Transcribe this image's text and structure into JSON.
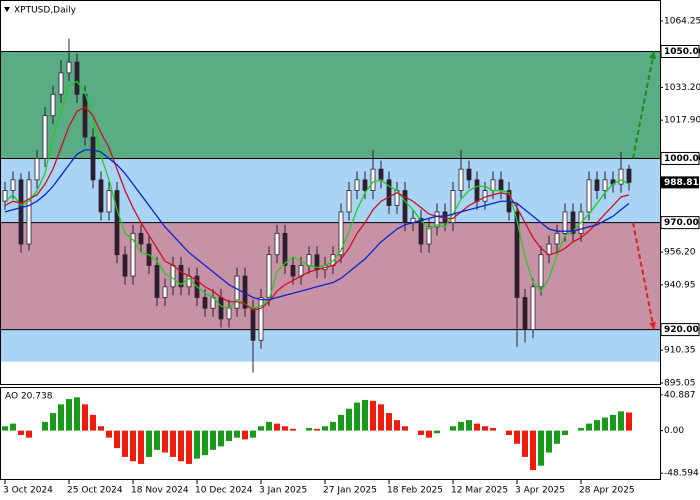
{
  "chart_data": {
    "type": "candlestick",
    "title": "XPTUSD,Daily",
    "categories": [
      "3 Oct 2024",
      null,
      null,
      null,
      null,
      null,
      null,
      null,
      "25 Oct 2024",
      null,
      null,
      null,
      null,
      null,
      null,
      null,
      "18 Nov 2024",
      null,
      null,
      null,
      null,
      null,
      null,
      null,
      "10 Dec 2024",
      null,
      null,
      null,
      null,
      null,
      null,
      null,
      "3 Jan 2025",
      null,
      null,
      null,
      null,
      null,
      null,
      null,
      "27 Jan 2025",
      null,
      null,
      null,
      null,
      null,
      null,
      null,
      "18 Feb 2025",
      null,
      null,
      null,
      null,
      null,
      null,
      null,
      "12 Mar 2025",
      null,
      null,
      null,
      null,
      null,
      null,
      null,
      "3 Apr 2025",
      null,
      null,
      null,
      null,
      null,
      null,
      null,
      "28 Apr 2025",
      null,
      null,
      null,
      null,
      null,
      null
    ],
    "open": [
      980,
      985,
      990,
      960,
      990,
      1000,
      1020,
      1030,
      1040,
      1045,
      1030,
      1010,
      990,
      975,
      985,
      955,
      945,
      965,
      960,
      950,
      935,
      940,
      950,
      940,
      945,
      935,
      930,
      935,
      925,
      930,
      945,
      930,
      915,
      935,
      955,
      965,
      950,
      945,
      950,
      955,
      948,
      950,
      955,
      975,
      985,
      990,
      985,
      995,
      990,
      978,
      985,
      970,
      972,
      960,
      968,
      975,
      970,
      985,
      995,
      990,
      980,
      985,
      990,
      985,
      975,
      935,
      920,
      940,
      955,
      960,
      965,
      975,
      965,
      975,
      990,
      985,
      990,
      988,
      995
    ],
    "high": [
      989,
      994,
      993,
      994,
      1004,
      1024,
      1034,
      1046,
      1056,
      1049,
      1034,
      1014,
      994,
      989,
      989,
      959,
      969,
      969,
      964,
      954,
      944,
      954,
      954,
      949,
      949,
      939,
      939,
      939,
      934,
      949,
      949,
      934,
      939,
      959,
      969,
      969,
      954,
      954,
      959,
      959,
      954,
      959,
      979,
      989,
      994,
      994,
      1004,
      999,
      994,
      989,
      989,
      976,
      976,
      972,
      979,
      979,
      989,
      1004,
      999,
      994,
      989,
      994,
      994,
      989,
      979,
      939,
      944,
      959,
      964,
      969,
      979,
      979,
      979,
      994,
      994,
      994,
      994,
      1003,
      997
    ],
    "low": [
      976,
      981,
      956,
      957,
      986,
      996,
      1016,
      1026,
      1036,
      1026,
      1006,
      986,
      971,
      971,
      951,
      941,
      941,
      956,
      946,
      931,
      931,
      936,
      936,
      936,
      931,
      926,
      926,
      921,
      921,
      926,
      926,
      900,
      911,
      931,
      951,
      946,
      941,
      941,
      946,
      944,
      944,
      946,
      951,
      971,
      981,
      981,
      981,
      986,
      974,
      974,
      966,
      966,
      956,
      956,
      964,
      966,
      966,
      981,
      986,
      976,
      976,
      981,
      981,
      971,
      912,
      914,
      916,
      936,
      951,
      956,
      961,
      961,
      961,
      971,
      981,
      981,
      984,
      984,
      985
    ],
    "close": [
      985,
      990,
      960,
      990,
      1000,
      1020,
      1030,
      1040,
      1045,
      1030,
      1010,
      990,
      975,
      985,
      955,
      945,
      965,
      960,
      950,
      935,
      940,
      950,
      940,
      945,
      935,
      930,
      935,
      925,
      930,
      945,
      930,
      915,
      935,
      955,
      965,
      950,
      945,
      950,
      955,
      948,
      950,
      955,
      975,
      985,
      990,
      985,
      995,
      990,
      978,
      985,
      970,
      972,
      960,
      968,
      975,
      970,
      985,
      995,
      990,
      980,
      985,
      990,
      985,
      975,
      935,
      920,
      940,
      955,
      960,
      965,
      975,
      965,
      975,
      990,
      985,
      990,
      988,
      995,
      988.81
    ],
    "candle_color": "#2e1f2e",
    "series": [
      {
        "color": "#22cc22",
        "values": [
          980,
          983,
          978,
          980,
          985,
          993,
          1010,
          1022,
          1034,
          1036,
          1031,
          1019,
          1001,
          990,
          976,
          965,
          962,
          956,
          955,
          952,
          946,
          944,
          941,
          944,
          940,
          937,
          935,
          931,
          930,
          934,
          932,
          930,
          931,
          934,
          947,
          951,
          954,
          952,
          950,
          949,
          950,
          952,
          957,
          966,
          976,
          984,
          989,
          990,
          987,
          985,
          980,
          976,
          971,
          967,
          969,
          968,
          974,
          981,
          985,
          987,
          987,
          985,
          985,
          984,
          971,
          954,
          942,
          938,
          944,
          955,
          964,
          966,
          970,
          974,
          979,
          984,
          988,
          990,
          988
        ]
      },
      {
        "color": "#cc1122",
        "values": [
          978,
          980,
          979,
          981,
          983,
          988,
          995,
          1005,
          1015,
          1022,
          1024,
          1020,
          1012,
          1005,
          995,
          985,
          977,
          970,
          964,
          958,
          952,
          950,
          947,
          945,
          943,
          940,
          938,
          935,
          933,
          933,
          932,
          929,
          930,
          933,
          938,
          941,
          943,
          945,
          947,
          948,
          949,
          950,
          953,
          958,
          965,
          970,
          976,
          980,
          982,
          984,
          982,
          980,
          977,
          974,
          973,
          972,
          972,
          975,
          978,
          980,
          982,
          983,
          984,
          983,
          977,
          970,
          963,
          958,
          955,
          956,
          958,
          961,
          963,
          966,
          970,
          974,
          978,
          982,
          983
        ]
      },
      {
        "color": "#1122cc",
        "values": [
          975,
          976,
          977,
          978,
          980,
          983,
          987,
          992,
          997,
          1002,
          1004,
          1004,
          1003,
          1000,
          997,
          993,
          988,
          983,
          978,
          973,
          968,
          964,
          960,
          956,
          953,
          950,
          947,
          944,
          941,
          939,
          937,
          935,
          934,
          934,
          935,
          936,
          937,
          938,
          939,
          940,
          941,
          942,
          944,
          947,
          950,
          953,
          957,
          961,
          964,
          967,
          969,
          970,
          971,
          972,
          973,
          973,
          974,
          975,
          976,
          977,
          978,
          979,
          980,
          980,
          979,
          976,
          973,
          970,
          967,
          966,
          966,
          966,
          967,
          968,
          969,
          971,
          973,
          976,
          979
        ]
      }
    ],
    "ylim": [
      894.1,
      1073.6
    ],
    "yticks": [
      1064.25,
      {
        "value": 1033.2,
        "label": "1033.20"
      },
      {
        "value": 1017.9,
        "label": "1017.90"
      },
      {
        "value": 956.2,
        "label": "956.20"
      },
      940.95,
      910.35,
      895.05
    ],
    "zones": [
      {
        "from": 1000,
        "to": 1050,
        "color": "#5aac85"
      },
      {
        "from": 970,
        "to": 1000,
        "color": "#aad4f5"
      },
      {
        "from": 920,
        "to": 970,
        "color": "#c792a6"
      },
      {
        "from": 905,
        "to": 920,
        "color": "#aad4f5"
      }
    ],
    "levels": [
      {
        "value": 1050,
        "label": "1050.00"
      },
      {
        "value": 1000,
        "label": "1000.00"
      },
      {
        "value": 970,
        "label": "970.00"
      },
      {
        "value": 920,
        "label": "920.00"
      }
    ],
    "current_price": 988.81,
    "arrows": [
      {
        "from": 1000,
        "to": 1050,
        "color": "#1a8a1a"
      },
      {
        "from": 970,
        "to": 920,
        "color": "#e02020"
      }
    ],
    "oscillator": {
      "title": "AO 20.738",
      "values": [
        5,
        8,
        -5,
        -8,
        0,
        10,
        20,
        30,
        36,
        38,
        30,
        18,
        5,
        -8,
        -20,
        -30,
        -35,
        -38,
        -30,
        -22,
        -25,
        -30,
        -35,
        -38,
        -32,
        -28,
        -22,
        -18,
        -12,
        -8,
        -10,
        -8,
        5,
        10,
        8,
        5,
        2,
        0,
        3,
        2,
        5,
        10,
        18,
        25,
        32,
        35,
        34,
        30,
        20,
        12,
        5,
        0,
        -5,
        -8,
        -3,
        0,
        5,
        10,
        12,
        8,
        5,
        3,
        0,
        -5,
        -15,
        -30,
        -45,
        -40,
        -25,
        -15,
        -5,
        0,
        3,
        8,
        12,
        15,
        18,
        22,
        20.738
      ],
      "up_color": "#1a9a1a",
      "down_color": "#ee1c0c",
      "ylim": [
        -55.2,
        47.5
      ],
      "yticks": [
        40.887,
        {
          "value": 0,
          "label": "0.00"
        },
        -48.594
      ]
    }
  }
}
